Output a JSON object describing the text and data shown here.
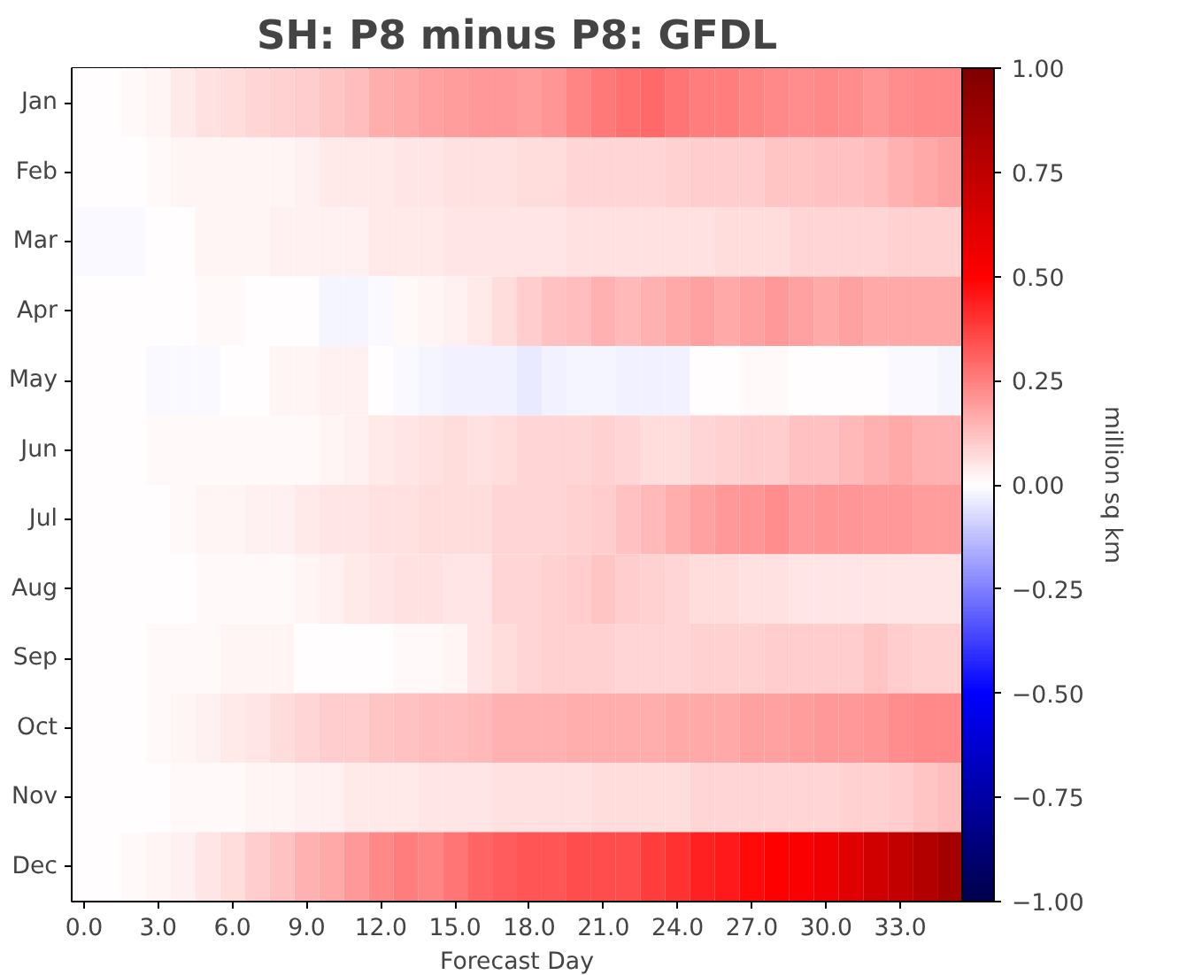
{
  "chart_data": {
    "type": "heatmap",
    "title": "SH: P8 minus P8: GFDL",
    "xlabel": "Forecast Day",
    "clabel": "million sq km",
    "x": [
      0,
      1,
      2,
      3,
      4,
      5,
      6,
      7,
      8,
      9,
      10,
      11,
      12,
      13,
      14,
      15,
      16,
      17,
      18,
      19,
      20,
      21,
      22,
      23,
      24,
      25,
      26,
      27,
      28,
      29,
      30,
      31,
      32,
      33,
      34,
      35
    ],
    "xlim": [
      -0.5,
      35.5
    ],
    "xticks": [
      {
        "value": 0,
        "label": "0.0"
      },
      {
        "value": 3,
        "label": "3.0"
      },
      {
        "value": 6,
        "label": "6.0"
      },
      {
        "value": 9,
        "label": "9.0"
      },
      {
        "value": 12,
        "label": "12.0"
      },
      {
        "value": 15,
        "label": "15.0"
      },
      {
        "value": 18,
        "label": "18.0"
      },
      {
        "value": 21,
        "label": "21.0"
      },
      {
        "value": 24,
        "label": "24.0"
      },
      {
        "value": 27,
        "label": "27.0"
      },
      {
        "value": 30,
        "label": "30.0"
      },
      {
        "value": 33,
        "label": "33.0"
      }
    ],
    "y_categories": [
      "Jan",
      "Feb",
      "Mar",
      "Apr",
      "May",
      "Jun",
      "Jul",
      "Aug",
      "Sep",
      "Oct",
      "Nov",
      "Dec"
    ],
    "cells": [
      [
        0.0,
        0.0,
        0.01,
        0.02,
        0.04,
        0.06,
        0.07,
        0.08,
        0.09,
        0.1,
        0.11,
        0.13,
        0.16,
        0.17,
        0.18,
        0.19,
        0.2,
        0.2,
        0.19,
        0.21,
        0.24,
        0.26,
        0.28,
        0.29,
        0.27,
        0.25,
        0.25,
        0.24,
        0.23,
        0.22,
        0.23,
        0.22,
        0.21,
        0.22,
        0.23,
        0.23
      ],
      [
        0.0,
        0.0,
        0.0,
        0.01,
        0.02,
        0.02,
        0.02,
        0.02,
        0.02,
        0.03,
        0.04,
        0.04,
        0.04,
        0.05,
        0.05,
        0.06,
        0.06,
        0.06,
        0.07,
        0.07,
        0.08,
        0.08,
        0.08,
        0.08,
        0.09,
        0.1,
        0.1,
        0.1,
        0.11,
        0.11,
        0.12,
        0.12,
        0.13,
        0.15,
        0.17,
        0.18
      ],
      [
        -0.01,
        -0.01,
        -0.01,
        0.0,
        0.0,
        0.02,
        0.02,
        0.02,
        0.03,
        0.03,
        0.03,
        0.03,
        0.04,
        0.04,
        0.04,
        0.05,
        0.05,
        0.05,
        0.05,
        0.05,
        0.06,
        0.06,
        0.06,
        0.06,
        0.06,
        0.06,
        0.07,
        0.07,
        0.07,
        0.08,
        0.08,
        0.08,
        0.08,
        0.09,
        0.09,
        0.09
      ],
      [
        0.0,
        0.0,
        0.0,
        0.0,
        0.0,
        0.01,
        0.01,
        0.0,
        0.0,
        0.0,
        -0.02,
        -0.02,
        -0.01,
        0.01,
        0.02,
        0.03,
        0.04,
        0.07,
        0.1,
        0.12,
        0.13,
        0.15,
        0.14,
        0.15,
        0.17,
        0.18,
        0.17,
        0.18,
        0.2,
        0.18,
        0.17,
        0.18,
        0.17,
        0.17,
        0.17,
        0.17
      ],
      [
        0.0,
        0.0,
        0.0,
        -0.01,
        -0.01,
        -0.01,
        0.0,
        0.0,
        0.02,
        0.02,
        0.03,
        0.03,
        0.0,
        -0.01,
        -0.02,
        -0.03,
        -0.03,
        -0.03,
        -0.04,
        -0.03,
        -0.02,
        -0.02,
        -0.03,
        -0.03,
        -0.03,
        0.0,
        0.0,
        0.01,
        0.01,
        0.0,
        0.0,
        0.0,
        0.0,
        -0.01,
        -0.01,
        -0.02
      ],
      [
        0.0,
        0.0,
        0.0,
        0.01,
        0.01,
        0.01,
        0.01,
        0.01,
        0.01,
        0.01,
        0.02,
        0.03,
        0.04,
        0.05,
        0.06,
        0.07,
        0.06,
        0.07,
        0.08,
        0.08,
        0.08,
        0.09,
        0.08,
        0.07,
        0.07,
        0.08,
        0.09,
        0.1,
        0.1,
        0.12,
        0.12,
        0.14,
        0.15,
        0.17,
        0.15,
        0.15
      ],
      [
        0.0,
        0.0,
        0.0,
        0.0,
        0.01,
        0.02,
        0.02,
        0.03,
        0.03,
        0.04,
        0.05,
        0.05,
        0.06,
        0.06,
        0.07,
        0.07,
        0.07,
        0.08,
        0.08,
        0.08,
        0.09,
        0.1,
        0.12,
        0.14,
        0.16,
        0.18,
        0.2,
        0.21,
        0.22,
        0.2,
        0.21,
        0.21,
        0.2,
        0.2,
        0.19,
        0.19
      ],
      [
        0.0,
        0.0,
        0.0,
        0.0,
        0.0,
        0.01,
        0.01,
        0.01,
        0.01,
        0.02,
        0.03,
        0.04,
        0.05,
        0.06,
        0.06,
        0.05,
        0.05,
        0.08,
        0.08,
        0.09,
        0.1,
        0.11,
        0.1,
        0.09,
        0.08,
        0.07,
        0.07,
        0.06,
        0.06,
        0.05,
        0.05,
        0.05,
        0.05,
        0.05,
        0.05,
        0.05
      ],
      [
        0.0,
        0.0,
        0.0,
        0.01,
        0.01,
        0.01,
        0.02,
        0.02,
        0.02,
        0.0,
        0.0,
        0.0,
        0.0,
        0.01,
        0.01,
        0.02,
        0.05,
        0.07,
        0.08,
        0.09,
        0.09,
        0.09,
        0.08,
        0.08,
        0.08,
        0.09,
        0.09,
        0.09,
        0.1,
        0.1,
        0.1,
        0.1,
        0.11,
        0.1,
        0.09,
        0.09
      ],
      [
        0.0,
        0.0,
        0.0,
        0.01,
        0.02,
        0.03,
        0.04,
        0.05,
        0.07,
        0.08,
        0.1,
        0.1,
        0.11,
        0.12,
        0.13,
        0.13,
        0.14,
        0.15,
        0.15,
        0.15,
        0.16,
        0.16,
        0.16,
        0.16,
        0.17,
        0.17,
        0.17,
        0.18,
        0.18,
        0.19,
        0.2,
        0.2,
        0.21,
        0.22,
        0.23,
        0.23
      ],
      [
        0.0,
        0.0,
        0.0,
        0.0,
        0.01,
        0.01,
        0.01,
        0.02,
        0.02,
        0.03,
        0.03,
        0.04,
        0.04,
        0.04,
        0.05,
        0.05,
        0.05,
        0.06,
        0.06,
        0.06,
        0.06,
        0.07,
        0.07,
        0.07,
        0.07,
        0.08,
        0.08,
        0.08,
        0.08,
        0.08,
        0.08,
        0.09,
        0.09,
        0.1,
        0.11,
        0.13
      ],
      [
        0.0,
        0.0,
        0.01,
        0.02,
        0.03,
        0.05,
        0.07,
        0.1,
        0.12,
        0.15,
        0.17,
        0.2,
        0.23,
        0.25,
        0.24,
        0.27,
        0.3,
        0.32,
        0.33,
        0.33,
        0.35,
        0.35,
        0.35,
        0.38,
        0.4,
        0.43,
        0.45,
        0.48,
        0.5,
        0.52,
        0.56,
        0.62,
        0.68,
        0.74,
        0.8,
        0.85
      ]
    ],
    "clim": [
      -1,
      1
    ],
    "cticks": [
      {
        "value": -1,
        "label": "−1.00"
      },
      {
        "value": -0.75,
        "label": "−0.75"
      },
      {
        "value": -0.5,
        "label": "−0.50"
      },
      {
        "value": -0.25,
        "label": "−0.25"
      },
      {
        "value": 0,
        "label": "0.00"
      },
      {
        "value": 0.25,
        "label": "0.25"
      },
      {
        "value": 0.5,
        "label": "0.50"
      },
      {
        "value": 0.75,
        "label": "0.75"
      },
      {
        "value": 1,
        "label": "1.00"
      }
    ]
  }
}
